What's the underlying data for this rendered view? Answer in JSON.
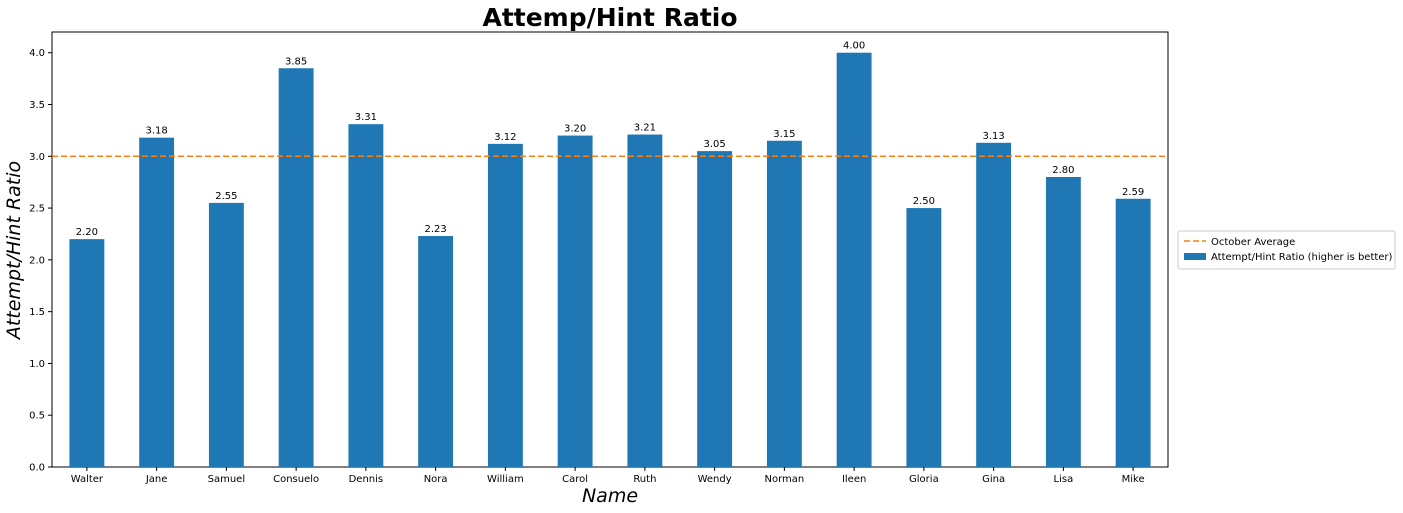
{
  "chart_data": {
    "type": "bar",
    "title": "Attemp/Hint Ratio",
    "xlabel": "Name",
    "ylabel": "Attempt/Hint Ratio",
    "categories": [
      "Walter",
      "Jane",
      "Samuel",
      "Consuelo",
      "Dennis",
      "Nora",
      "William",
      "Carol",
      "Ruth",
      "Wendy",
      "Norman",
      "Ileen",
      "Gloria",
      "Gina",
      "Lisa",
      "Mike"
    ],
    "series": [
      {
        "name": "Attempt/Hint Ratio (higher is better)",
        "values": [
          2.2,
          3.18,
          2.55,
          3.85,
          3.31,
          2.23,
          3.12,
          3.2,
          3.21,
          3.05,
          3.15,
          4.0,
          2.5,
          3.13,
          2.8,
          2.59
        ],
        "color": "#1f77b4"
      }
    ],
    "data_labels": [
      "2.20",
      "3.18",
      "2.55",
      "3.85",
      "3.31",
      "2.23",
      "3.12",
      "3.20",
      "3.21",
      "3.05",
      "3.15",
      "4.00",
      "2.50",
      "3.13",
      "2.80",
      "2.59"
    ],
    "reference_line": {
      "name": "October Average",
      "value": 3.0,
      "color": "#ff7f0e",
      "style": "dashed"
    },
    "ylim": [
      0,
      4.2
    ],
    "yticks": [
      0.0,
      0.5,
      1.0,
      1.5,
      2.0,
      2.5,
      3.0,
      3.5,
      4.0
    ],
    "ytick_labels": [
      "0.0",
      "0.5",
      "1.0",
      "1.5",
      "2.0",
      "2.5",
      "3.0",
      "3.5",
      "4.0"
    ],
    "grid": false,
    "legend": {
      "placement": "center-right-outside",
      "entries": [
        "October Average",
        "Attempt/Hint Ratio (higher is better)"
      ]
    }
  }
}
